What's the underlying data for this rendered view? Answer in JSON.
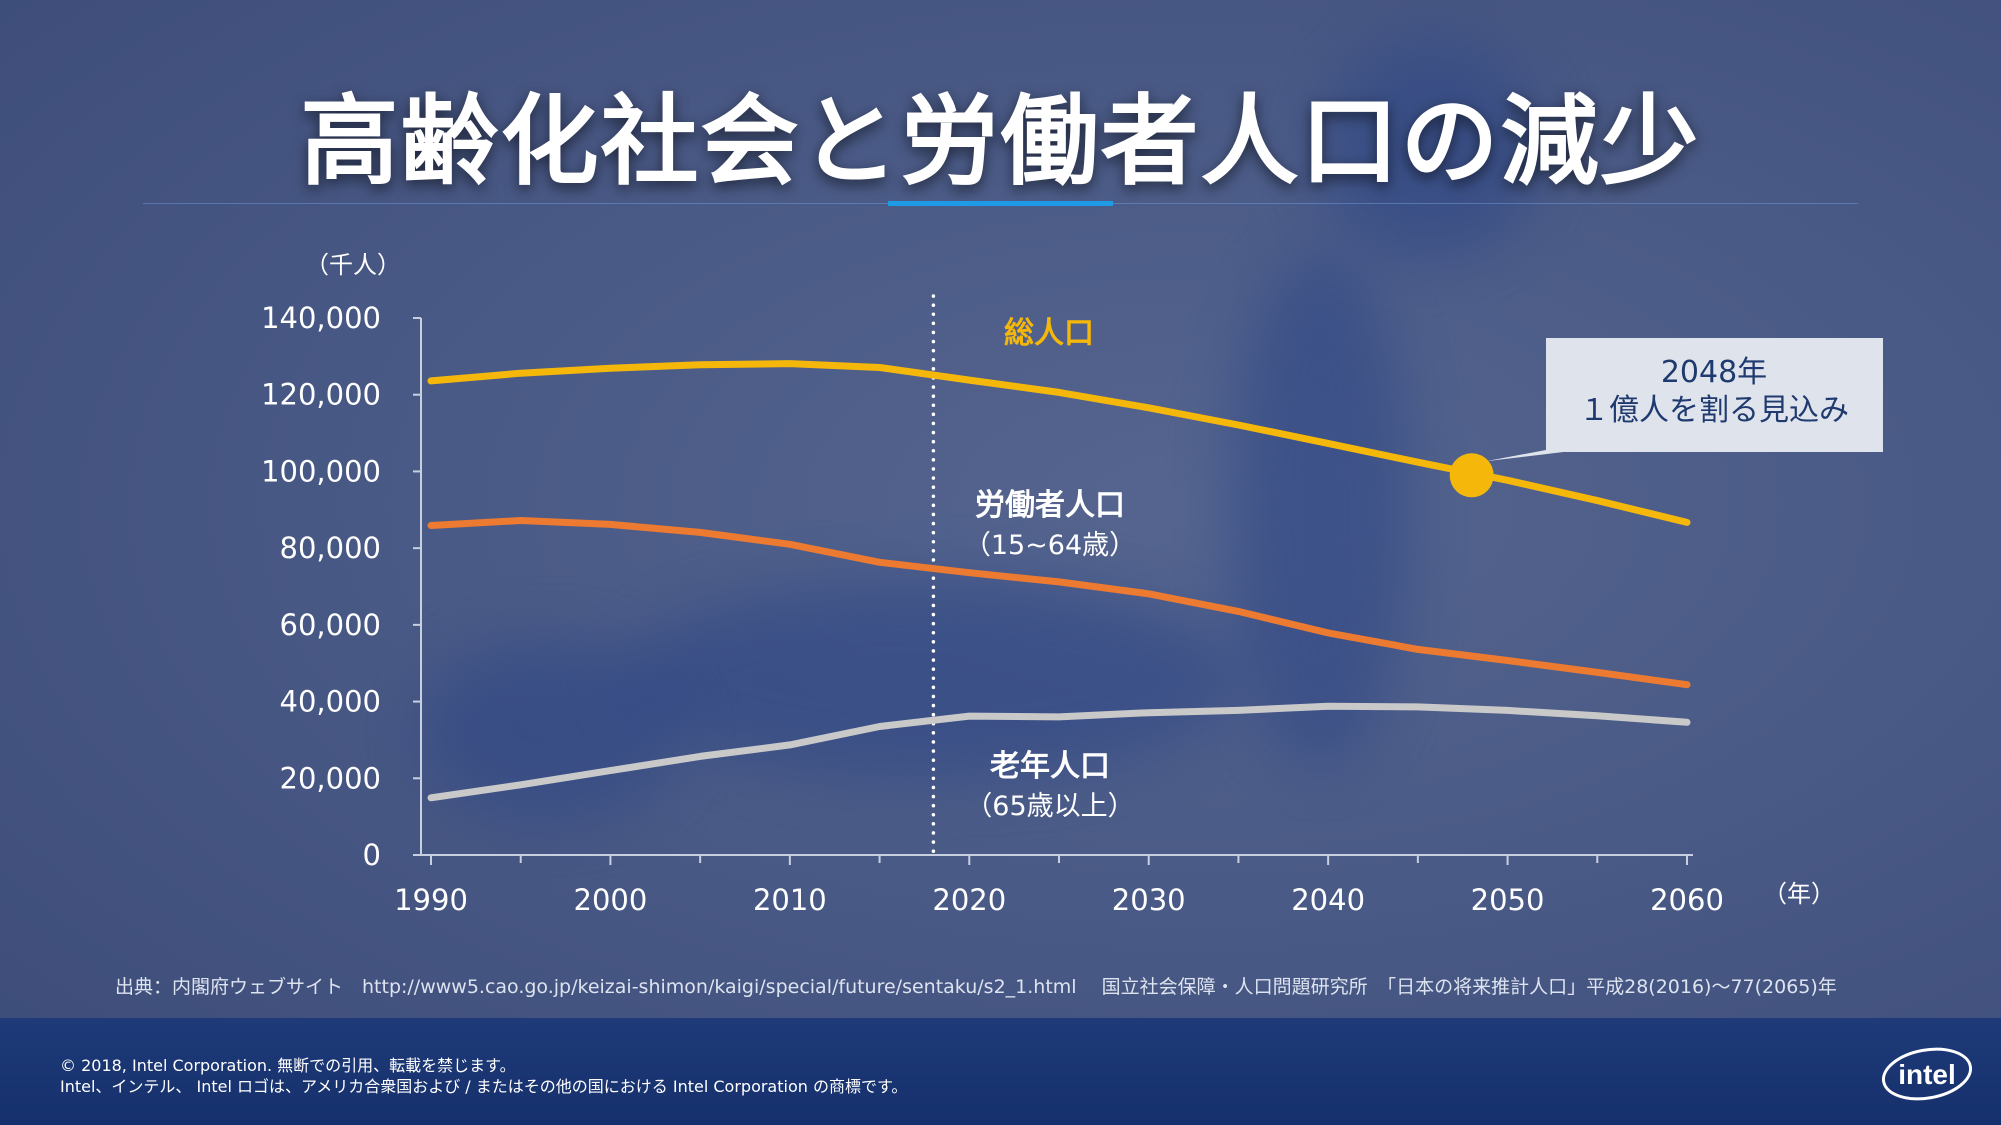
{
  "title": "高齢化社会と労働者人口の減少",
  "chart_data": {
    "type": "line",
    "ylabel": "（千人）",
    "xunit": "（年）",
    "ylim": [
      0,
      140000
    ],
    "yticks": [
      0,
      20000,
      40000,
      60000,
      80000,
      100000,
      120000,
      140000
    ],
    "ytick_labels": [
      "0",
      "20,000",
      "40,000",
      "60,000",
      "80,000",
      "100,000",
      "120,000",
      "140,000"
    ],
    "xlim": [
      1990,
      2060
    ],
    "xticks": [
      1990,
      2000,
      2010,
      2020,
      2030,
      2040,
      2050,
      2060
    ],
    "xtick_labels": [
      "1990",
      "2000",
      "2010",
      "2020",
      "2030",
      "2040",
      "2050",
      "2060"
    ],
    "minor_xticks": [
      1995,
      2005,
      2015,
      2025,
      2035,
      2045,
      2055
    ],
    "divider_year": 2018,
    "x": [
      1990,
      1995,
      2000,
      2005,
      2010,
      2015,
      2020,
      2025,
      2030,
      2035,
      2040,
      2045,
      2050,
      2055,
      2060
    ],
    "series": [
      {
        "name": "総人口",
        "label": "総人口",
        "sublabel": "",
        "color": "#f5b80a",
        "values": [
          123600,
          125600,
          126900,
          127800,
          128100,
          127100,
          123800,
          120600,
          116600,
          112100,
          107300,
          102400,
          97700,
          92400,
          86700
        ]
      },
      {
        "name": "労働者人口",
        "label": "労働者人口",
        "sublabel": "（15~64歳）",
        "color": "#ec7a30",
        "values": [
          85900,
          87200,
          86200,
          84100,
          81000,
          76300,
          73600,
          71200,
          68100,
          63500,
          57900,
          53600,
          50700,
          47600,
          44400
        ]
      },
      {
        "name": "老年人口",
        "label": "老年人口",
        "sublabel": "（65歳以上）",
        "color": "#c9c9c9",
        "values": [
          14900,
          18300,
          22000,
          25700,
          28700,
          33500,
          36200,
          36000,
          37100,
          37700,
          38800,
          38600,
          37700,
          36300,
          34600
        ]
      }
    ],
    "annotation": {
      "x": 2048,
      "y": 99000,
      "line1": "2048年",
      "line2": "１億人を割る見込み"
    }
  },
  "source": "出典：内閣府ウェブサイト　http://www5.cao.go.jp/keizai-shimon/kaigi/special/future/sentaku/s2_1.html　 国立社会保障・人口問題研究所　「日本の将来推計人口」平成28(2016)～77(2065)年",
  "footer": {
    "copyright": "© 2018, Intel Corporation. 無断での引用、転載を禁じます。",
    "trademark": "Intel、インテル、 Intel ロゴは、アメリカ合衆国および / またはその他の国における Intel Corporation の商標です。",
    "logo_text": "intel"
  }
}
